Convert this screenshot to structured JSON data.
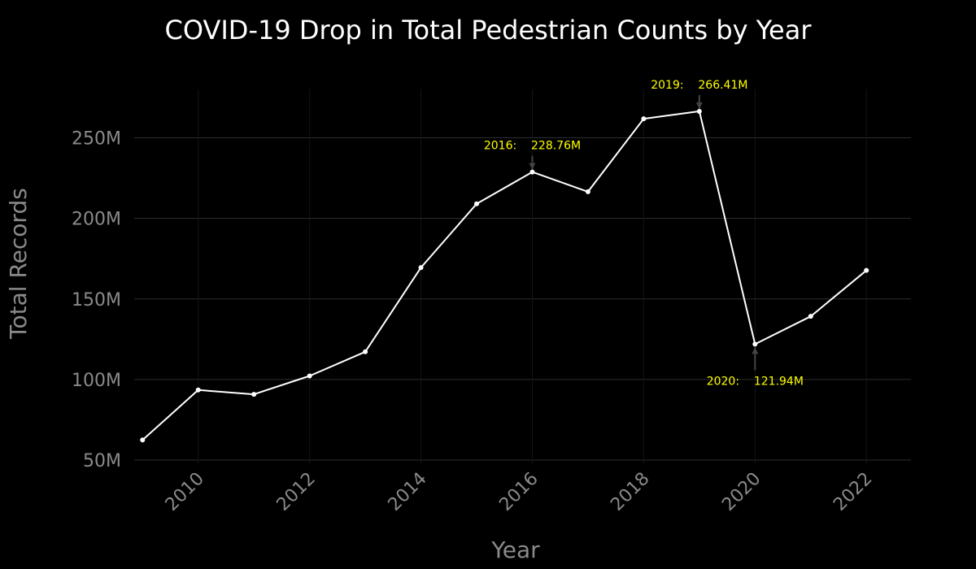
{
  "chart_data": {
    "type": "line",
    "title": "COVID-19 Drop in Total Pedestrian Counts by Year",
    "xlabel": "Year",
    "ylabel": "Total Records",
    "x": [
      2009,
      2010,
      2011,
      2012,
      2013,
      2014,
      2015,
      2016,
      2017,
      2018,
      2019,
      2020,
      2021,
      2022
    ],
    "series": [
      {
        "values": [
          62.5,
          93.5,
          90.8,
          102.2,
          117.2,
          169.5,
          209.0,
          228.76,
          216.5,
          261.8,
          266.41,
          121.94,
          139.2,
          167.7
        ]
      }
    ],
    "value_unit": "millions",
    "xlim": [
      2008.85,
      2022.8
    ],
    "ylim": [
      48,
      280
    ],
    "x_ticks": [
      2010,
      2012,
      2014,
      2016,
      2018,
      2020,
      2022
    ],
    "x_tick_labels": [
      "2010",
      "2012",
      "2014",
      "2016",
      "2018",
      "2020",
      "2022"
    ],
    "y_ticks": [
      50,
      100,
      150,
      200,
      250
    ],
    "y_tick_labels": [
      "50M",
      "100M",
      "150M",
      "200M",
      "250M"
    ],
    "grid": true,
    "annotations": [
      {
        "x": 2016,
        "y": 228.76,
        "text": "2016:    228.76M",
        "arrow_direction": "up"
      },
      {
        "x": 2019,
        "y": 266.41,
        "text": "2019:    266.41M",
        "arrow_direction": "up"
      },
      {
        "x": 2020,
        "y": 121.94,
        "text": "2020:    121.94M",
        "arrow_direction": "down"
      }
    ],
    "colors": {
      "background": "#000000",
      "line": "#ffffff",
      "grid": "#2e2e2e",
      "annotation_text": "#ffff00",
      "arrow": "#444444",
      "title": "#ffffff",
      "axis_text": "#8a8a8a"
    }
  }
}
